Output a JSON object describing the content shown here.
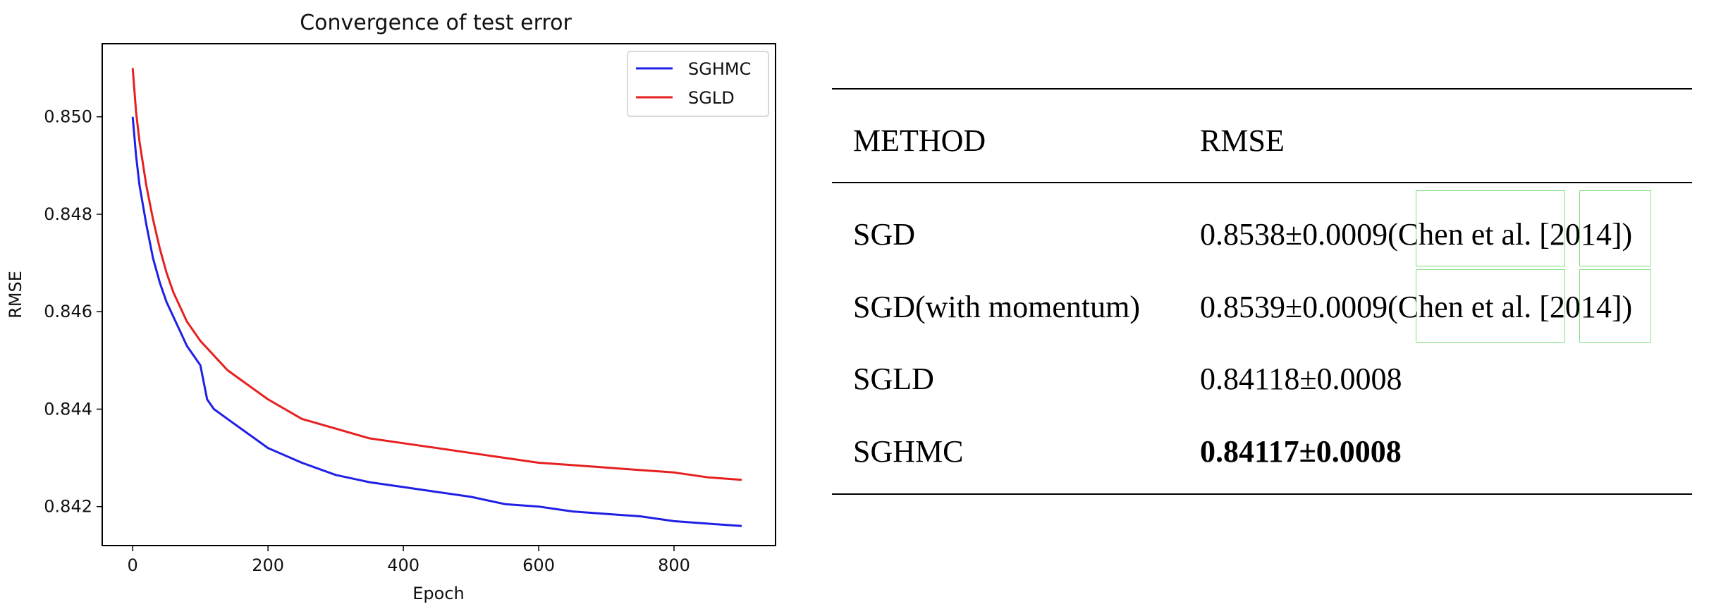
{
  "chart_data": {
    "type": "line",
    "title": "Convergence of test error",
    "xlabel": "Epoch",
    "ylabel": "RMSE",
    "xlim": [
      -45,
      950
    ],
    "ylim": [
      0.8412,
      0.8515
    ],
    "xticks": [
      "0",
      "200",
      "400",
      "600",
      "800"
    ],
    "yticks": [
      "0.842",
      "0.844",
      "0.846",
      "0.848",
      "0.850"
    ],
    "legend_position": "top-right",
    "series": [
      {
        "name": "SGHMC",
        "color": "#1f1fe6",
        "x": [
          0,
          5,
          10,
          20,
          30,
          40,
          50,
          60,
          70,
          80,
          90,
          100,
          110,
          120,
          140,
          160,
          180,
          200,
          250,
          300,
          350,
          400,
          450,
          500,
          550,
          600,
          650,
          700,
          750,
          800,
          850,
          900
        ],
        "y": [
          0.85,
          0.8492,
          0.8486,
          0.8478,
          0.8471,
          0.8466,
          0.8462,
          0.8459,
          0.8456,
          0.8453,
          0.8451,
          0.8449,
          0.8442,
          0.844,
          0.8438,
          0.8436,
          0.8434,
          0.8432,
          0.8429,
          0.84265,
          0.8425,
          0.8424,
          0.8423,
          0.8422,
          0.84205,
          0.842,
          0.8419,
          0.84185,
          0.8418,
          0.8417,
          0.84165,
          0.8416
        ]
      },
      {
        "name": "SGLD",
        "color": "#e61f1f",
        "x": [
          0,
          5,
          10,
          20,
          30,
          40,
          50,
          60,
          70,
          80,
          90,
          100,
          120,
          140,
          160,
          180,
          200,
          250,
          300,
          350,
          400,
          450,
          500,
          550,
          600,
          650,
          700,
          750,
          800,
          850,
          900
        ],
        "y": [
          0.851,
          0.8501,
          0.8495,
          0.8486,
          0.8479,
          0.8473,
          0.8468,
          0.8464,
          0.8461,
          0.8458,
          0.8456,
          0.8454,
          0.8451,
          0.8448,
          0.8446,
          0.8444,
          0.8442,
          0.8438,
          0.8436,
          0.8434,
          0.8433,
          0.8432,
          0.8431,
          0.843,
          0.8429,
          0.84285,
          0.8428,
          0.84275,
          0.8427,
          0.8426,
          0.84255
        ]
      }
    ]
  },
  "table": {
    "headers": [
      "METHOD",
      "RMSE"
    ],
    "rows": [
      {
        "method": "SGD",
        "value": "0.8538±0.0009(",
        "cite_a": "Chen et al.",
        "cite_sep": " [",
        "cite_b": "2014",
        "cite_end": "])",
        "bold": false
      },
      {
        "method": "SGD(with momentum)",
        "value": "0.8539±0.0009(",
        "cite_a": "Chen et al.",
        "cite_sep": " [",
        "cite_b": "2014",
        "cite_end": "])",
        "bold": false
      },
      {
        "method": "SGLD",
        "value": "0.84118±0.0008",
        "bold": false
      },
      {
        "method": "SGHMC",
        "value": "0.84117±0.0008",
        "bold": true
      }
    ]
  }
}
